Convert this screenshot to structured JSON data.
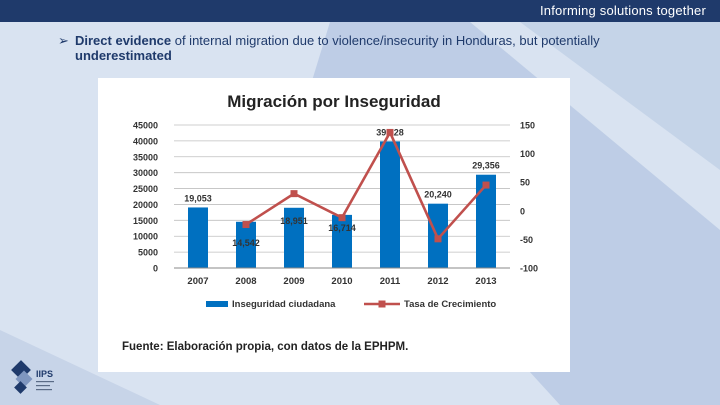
{
  "header": {
    "tagline": "Informing solutions together"
  },
  "bullet": {
    "emphasis": "Direct evidence",
    "rest": " of internal migration due to violence/insecurity in Honduras, but potentially",
    "line2": "underestimated"
  },
  "logo": {
    "text": "IIPS"
  },
  "colors": {
    "bar": "#0070c0",
    "line": "#c0504d",
    "header_bg": "#1f3a6b"
  },
  "chart_data": {
    "type": "bar",
    "title": "Migración por Inseguridad",
    "categories": [
      "2007",
      "2008",
      "2009",
      "2010",
      "2011",
      "2012",
      "2013"
    ],
    "series": [
      {
        "name": "Inseguridad ciudadana",
        "type": "bar",
        "axis": "left",
        "values": [
          19053,
          14542,
          18951,
          16714,
          39828,
          20240,
          29356
        ],
        "labels": [
          "19,053",
          "14,542",
          "18,951",
          "16,714",
          "39,828",
          "20,240",
          "29,356"
        ]
      },
      {
        "name": "Tasa de Crecimiento",
        "type": "line",
        "axis": "right",
        "values": [
          null,
          -24,
          30,
          -12,
          137,
          -49,
          45
        ]
      }
    ],
    "y_left": {
      "ylim": [
        0,
        45000
      ],
      "ticks": [
        "0",
        "5000",
        "10000",
        "15000",
        "20000",
        "25000",
        "30000",
        "35000",
        "40000",
        "45000"
      ]
    },
    "y_right": {
      "ylim": [
        -100,
        150
      ],
      "ticks": [
        "-100",
        "-50",
        "0",
        "50",
        "100",
        "150"
      ]
    },
    "legend_position": "bottom",
    "source": "Fuente: Elaboración propia, con datos de la EPHPM."
  }
}
